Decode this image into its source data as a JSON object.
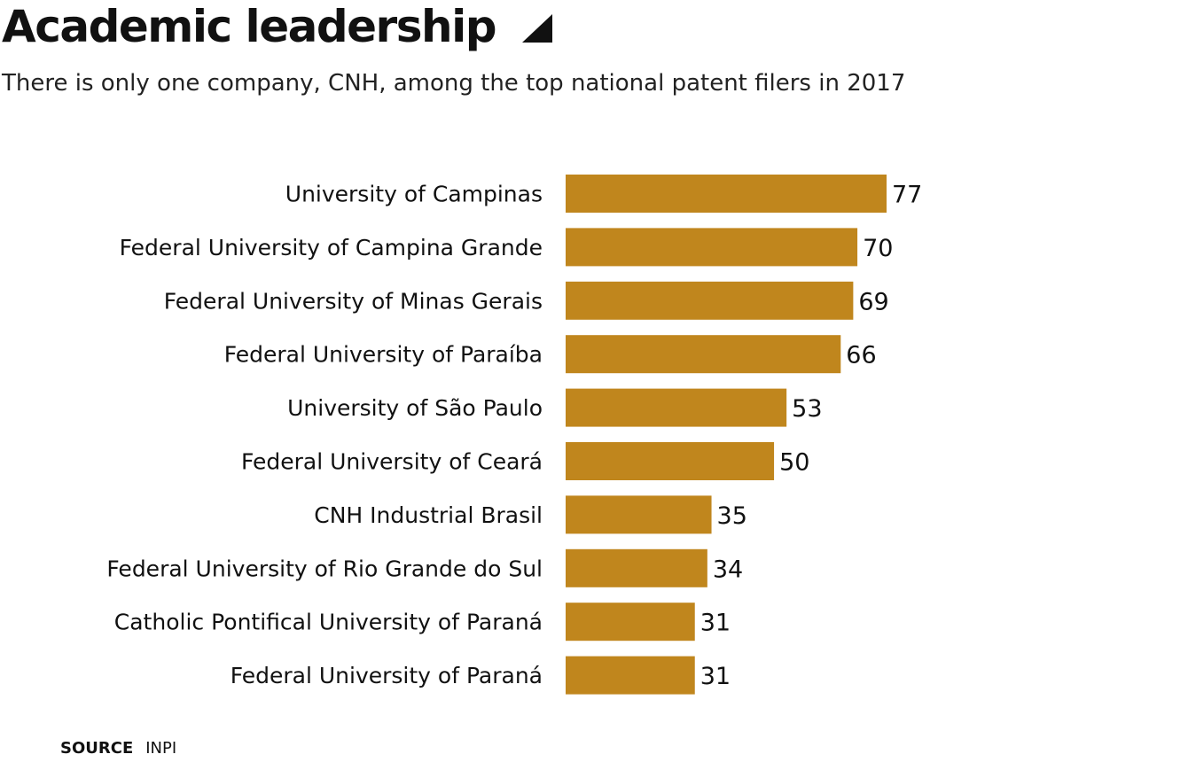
{
  "header": {
    "title": "Academic leadership",
    "subtitle": "There is only one company, CNH, among the top national patent filers in 2017"
  },
  "source": {
    "label": "SOURCE",
    "value": "INPI"
  },
  "colors": {
    "bar": "#c0861d",
    "text": "#111111"
  },
  "icons": {
    "title_icon": "triangle-corner-icon"
  },
  "chart_data": {
    "type": "bar",
    "orientation": "horizontal",
    "categories": [
      "University of Campinas",
      "Federal University of Campina Grande",
      "Federal University of Minas Gerais",
      "Federal University of Paraíba",
      "University of São Paulo",
      "Federal University of Ceará",
      "CNH Industrial Brasil",
      "Federal University of Rio Grande do Sul",
      "Catholic Pontifical University of Paraná",
      "Federal University of Paraná"
    ],
    "values": [
      77,
      70,
      69,
      66,
      53,
      50,
      35,
      34,
      31,
      31
    ],
    "value_labels": [
      "77",
      "70",
      "69",
      "66",
      "53",
      "50",
      "35",
      "34",
      "31",
      "31"
    ],
    "xlim": [
      0,
      77
    ],
    "grid": false,
    "data_labels": true
  }
}
